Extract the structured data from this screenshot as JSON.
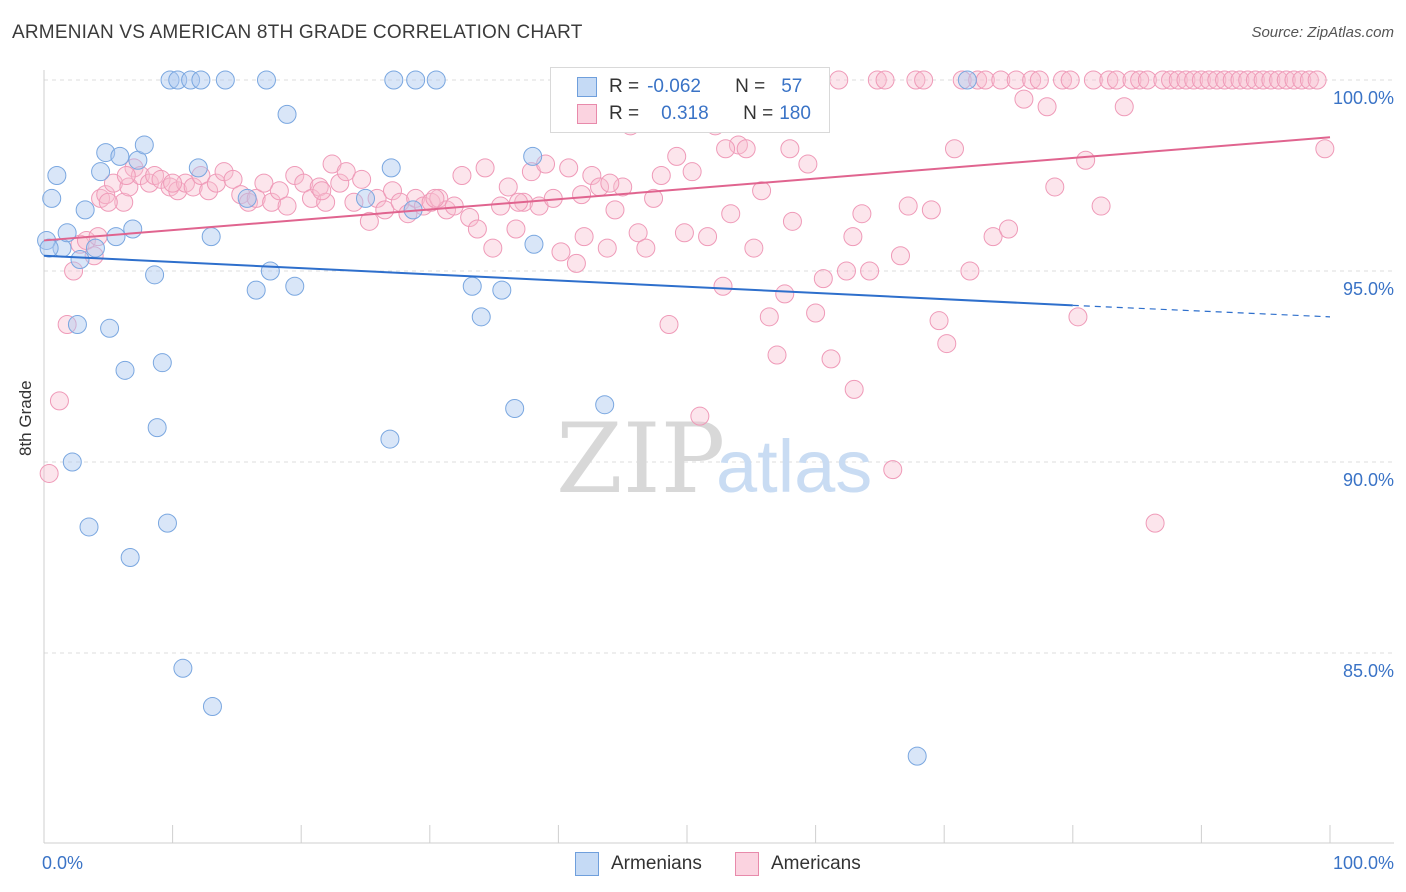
{
  "title": "ARMENIAN VS AMERICAN 8TH GRADE CORRELATION CHART",
  "source": "Source: ZipAtlas.com",
  "watermark": {
    "zip": "ZIP",
    "atlas": "atlas"
  },
  "legend": {
    "rows": [
      {
        "r_label": "R =",
        "r_value": "-0.062",
        "n_label": "N =",
        "n_value": "57",
        "color": "#a9c8f0",
        "border": "#6f9fdc"
      },
      {
        "r_label": "R =",
        "r_value": "0.318",
        "n_label": "N =",
        "n_value": "180",
        "color": "#f7bfd0",
        "border": "#e88aab"
      }
    ]
  },
  "bottom_legend": [
    "Armenians",
    "Americans"
  ],
  "chart_data": {
    "type": "scatter",
    "title": "ARMENIAN VS AMERICAN 8TH GRADE CORRELATION CHART",
    "xlabel": "",
    "ylabel": "8th Grade",
    "xlim": [
      0,
      100
    ],
    "ylim": [
      80.5,
      100.8
    ],
    "x_tick_labels": [
      "0.0%",
      "100.0%"
    ],
    "y_ticks": [
      85,
      90,
      95,
      100
    ],
    "y_tick_labels": [
      "85.0%",
      "90.0%",
      "95.0%",
      "100.0%"
    ],
    "grid": true,
    "colors": {
      "Armenians": "#7aa7e0",
      "Americans": "#ef9ab8",
      "armenian_line": "#2e6fcc",
      "american_line": "#e0648f"
    },
    "trend_lines": {
      "Armenians": {
        "x": [
          0,
          80
        ],
        "y": [
          95.4,
          94.1
        ],
        "dashed_to": [
          100,
          93.8
        ]
      },
      "Americans": {
        "x": [
          0,
          100
        ],
        "y": [
          95.8,
          98.5
        ]
      }
    },
    "series": [
      {
        "name": "Armenians",
        "points": [
          [
            0.2,
            95.8
          ],
          [
            0.6,
            96.9
          ],
          [
            1.0,
            97.5
          ],
          [
            1.4,
            95.6
          ],
          [
            1.8,
            96.0
          ],
          [
            2.2,
            90.0
          ],
          [
            2.6,
            93.6
          ],
          [
            2.8,
            95.3
          ],
          [
            3.2,
            96.6
          ],
          [
            3.5,
            88.3
          ],
          [
            4.0,
            95.6
          ],
          [
            4.4,
            97.6
          ],
          [
            4.8,
            98.1
          ],
          [
            5.1,
            93.5
          ],
          [
            5.6,
            95.9
          ],
          [
            5.9,
            98.0
          ],
          [
            6.3,
            92.4
          ],
          [
            6.7,
            87.5
          ],
          [
            6.9,
            96.1
          ],
          [
            7.3,
            97.9
          ],
          [
            7.8,
            98.3
          ],
          [
            8.6,
            94.9
          ],
          [
            8.8,
            90.9
          ],
          [
            9.2,
            92.6
          ],
          [
            9.6,
            88.4
          ],
          [
            9.8,
            100.0
          ],
          [
            10.4,
            100.0
          ],
          [
            10.8,
            84.6
          ],
          [
            11.4,
            100.0
          ],
          [
            12.0,
            97.7
          ],
          [
            12.2,
            100.0
          ],
          [
            13.1,
            83.6
          ],
          [
            13.0,
            95.9
          ],
          [
            14.1,
            100.0
          ],
          [
            15.8,
            96.9
          ],
          [
            16.5,
            94.5
          ],
          [
            17.3,
            100.0
          ],
          [
            17.6,
            95.0
          ],
          [
            18.9,
            99.1
          ],
          [
            19.5,
            94.6
          ],
          [
            25.0,
            96.9
          ],
          [
            26.9,
            90.6
          ],
          [
            27.0,
            97.7
          ],
          [
            27.2,
            100.0
          ],
          [
            28.7,
            96.6
          ],
          [
            28.9,
            100.0
          ],
          [
            30.5,
            100.0
          ],
          [
            33.3,
            94.6
          ],
          [
            34.0,
            93.8
          ],
          [
            35.6,
            94.5
          ],
          [
            36.6,
            91.4
          ],
          [
            38.0,
            98.0
          ],
          [
            38.1,
            95.7
          ],
          [
            43.6,
            91.5
          ],
          [
            67.9,
            82.3
          ],
          [
            71.8,
            100.0
          ],
          [
            0.4,
            95.6
          ]
        ]
      },
      {
        "name": "Americans",
        "points": [
          [
            0.4,
            89.7
          ],
          [
            1.2,
            91.6
          ],
          [
            1.8,
            93.6
          ],
          [
            2.3,
            95.0
          ],
          [
            2.8,
            95.7
          ],
          [
            3.3,
            95.8
          ],
          [
            3.9,
            95.4
          ],
          [
            4.4,
            96.9
          ],
          [
            4.8,
            97.0
          ],
          [
            5.4,
            97.3
          ],
          [
            6.2,
            96.8
          ],
          [
            6.6,
            97.2
          ],
          [
            7.0,
            97.7
          ],
          [
            7.5,
            97.5
          ],
          [
            8.2,
            97.3
          ],
          [
            8.6,
            97.5
          ],
          [
            9.1,
            97.4
          ],
          [
            9.8,
            97.2
          ],
          [
            10.4,
            97.1
          ],
          [
            11.0,
            97.3
          ],
          [
            11.6,
            97.2
          ],
          [
            12.2,
            97.5
          ],
          [
            12.8,
            97.1
          ],
          [
            13.4,
            97.3
          ],
          [
            14.0,
            97.6
          ],
          [
            14.7,
            97.4
          ],
          [
            15.3,
            97.0
          ],
          [
            15.9,
            96.8
          ],
          [
            16.5,
            96.9
          ],
          [
            17.1,
            97.3
          ],
          [
            17.7,
            96.8
          ],
          [
            18.3,
            97.1
          ],
          [
            18.9,
            96.7
          ],
          [
            19.5,
            97.5
          ],
          [
            20.2,
            97.3
          ],
          [
            20.8,
            96.9
          ],
          [
            21.4,
            97.2
          ],
          [
            21.9,
            96.8
          ],
          [
            22.4,
            97.8
          ],
          [
            23.0,
            97.3
          ],
          [
            23.5,
            97.6
          ],
          [
            24.1,
            96.8
          ],
          [
            24.7,
            97.4
          ],
          [
            25.3,
            96.3
          ],
          [
            25.9,
            96.9
          ],
          [
            26.5,
            96.6
          ],
          [
            27.1,
            97.1
          ],
          [
            27.7,
            96.8
          ],
          [
            28.3,
            96.5
          ],
          [
            28.9,
            96.9
          ],
          [
            29.5,
            96.7
          ],
          [
            30.1,
            96.8
          ],
          [
            30.7,
            96.9
          ],
          [
            31.3,
            96.6
          ],
          [
            31.9,
            96.7
          ],
          [
            32.5,
            97.5
          ],
          [
            33.1,
            96.4
          ],
          [
            33.7,
            96.1
          ],
          [
            34.3,
            97.7
          ],
          [
            34.9,
            95.6
          ],
          [
            35.5,
            96.7
          ],
          [
            36.1,
            97.2
          ],
          [
            36.7,
            96.1
          ],
          [
            37.3,
            96.8
          ],
          [
            37.9,
            97.6
          ],
          [
            38.5,
            96.7
          ],
          [
            39.0,
            97.8
          ],
          [
            39.6,
            96.9
          ],
          [
            40.2,
            95.5
          ],
          [
            40.8,
            97.7
          ],
          [
            41.4,
            95.2
          ],
          [
            42.0,
            95.9
          ],
          [
            42.6,
            97.5
          ],
          [
            43.2,
            97.2
          ],
          [
            43.8,
            95.6
          ],
          [
            44.4,
            96.6
          ],
          [
            45.0,
            97.2
          ],
          [
            45.6,
            98.8
          ],
          [
            46.2,
            96.0
          ],
          [
            46.8,
            95.6
          ],
          [
            47.4,
            96.9
          ],
          [
            48.0,
            97.5
          ],
          [
            48.6,
            93.6
          ],
          [
            49.2,
            98.0
          ],
          [
            49.8,
            96.0
          ],
          [
            50.4,
            97.6
          ],
          [
            51.0,
            91.2
          ],
          [
            51.6,
            95.9
          ],
          [
            52.2,
            98.8
          ],
          [
            52.8,
            94.6
          ],
          [
            53.4,
            96.5
          ],
          [
            54.0,
            98.3
          ],
          [
            54.6,
            98.2
          ],
          [
            55.2,
            95.6
          ],
          [
            55.8,
            97.1
          ],
          [
            56.4,
            93.8
          ],
          [
            57.0,
            92.8
          ],
          [
            57.6,
            94.4
          ],
          [
            58.2,
            96.3
          ],
          [
            58.8,
            100.0
          ],
          [
            59.4,
            97.8
          ],
          [
            60.0,
            93.9
          ],
          [
            60.6,
            94.8
          ],
          [
            61.2,
            92.7
          ],
          [
            61.8,
            100.0
          ],
          [
            62.4,
            95.0
          ],
          [
            63.0,
            91.9
          ],
          [
            63.6,
            96.5
          ],
          [
            64.2,
            95.0
          ],
          [
            64.8,
            100.0
          ],
          [
            65.4,
            100.0
          ],
          [
            66.0,
            89.8
          ],
          [
            66.6,
            95.4
          ],
          [
            67.2,
            96.7
          ],
          [
            67.8,
            100.0
          ],
          [
            68.4,
            100.0
          ],
          [
            69.0,
            96.6
          ],
          [
            69.6,
            93.7
          ],
          [
            70.2,
            93.1
          ],
          [
            70.8,
            98.2
          ],
          [
            71.4,
            100.0
          ],
          [
            72.0,
            95.0
          ],
          [
            72.6,
            100.0
          ],
          [
            73.2,
            100.0
          ],
          [
            73.8,
            95.9
          ],
          [
            74.4,
            100.0
          ],
          [
            75.0,
            96.1
          ],
          [
            75.6,
            100.0
          ],
          [
            76.2,
            99.5
          ],
          [
            76.8,
            100.0
          ],
          [
            77.4,
            100.0
          ],
          [
            78.0,
            99.3
          ],
          [
            78.6,
            97.2
          ],
          [
            79.2,
            100.0
          ],
          [
            79.8,
            100.0
          ],
          [
            80.4,
            93.8
          ],
          [
            81.0,
            97.9
          ],
          [
            81.6,
            100.0
          ],
          [
            82.2,
            96.7
          ],
          [
            82.8,
            100.0
          ],
          [
            83.4,
            100.0
          ],
          [
            84.0,
            99.3
          ],
          [
            84.6,
            100.0
          ],
          [
            85.2,
            100.0
          ],
          [
            85.8,
            100.0
          ],
          [
            86.4,
            88.4
          ],
          [
            87.0,
            100.0
          ],
          [
            87.6,
            100.0
          ],
          [
            88.2,
            100.0
          ],
          [
            88.8,
            100.0
          ],
          [
            89.4,
            100.0
          ],
          [
            90.0,
            100.0
          ],
          [
            90.6,
            100.0
          ],
          [
            91.2,
            100.0
          ],
          [
            91.8,
            100.0
          ],
          [
            92.4,
            100.0
          ],
          [
            93.0,
            100.0
          ],
          [
            93.6,
            100.0
          ],
          [
            94.2,
            100.0
          ],
          [
            94.8,
            100.0
          ],
          [
            95.4,
            100.0
          ],
          [
            96.0,
            100.0
          ],
          [
            96.6,
            100.0
          ],
          [
            97.2,
            100.0
          ],
          [
            97.8,
            100.0
          ],
          [
            98.4,
            100.0
          ],
          [
            99.0,
            100.0
          ],
          [
            99.6,
            98.2
          ],
          [
            21.6,
            97.1
          ],
          [
            10.0,
            97.3
          ],
          [
            6.4,
            97.5
          ],
          [
            4.2,
            95.9
          ],
          [
            5.0,
            96.8
          ],
          [
            30.4,
            96.9
          ],
          [
            36.9,
            96.8
          ],
          [
            41.8,
            97.0
          ],
          [
            44.0,
            97.3
          ],
          [
            53.0,
            98.2
          ],
          [
            58.0,
            98.2
          ],
          [
            62.9,
            95.9
          ]
        ]
      }
    ]
  }
}
